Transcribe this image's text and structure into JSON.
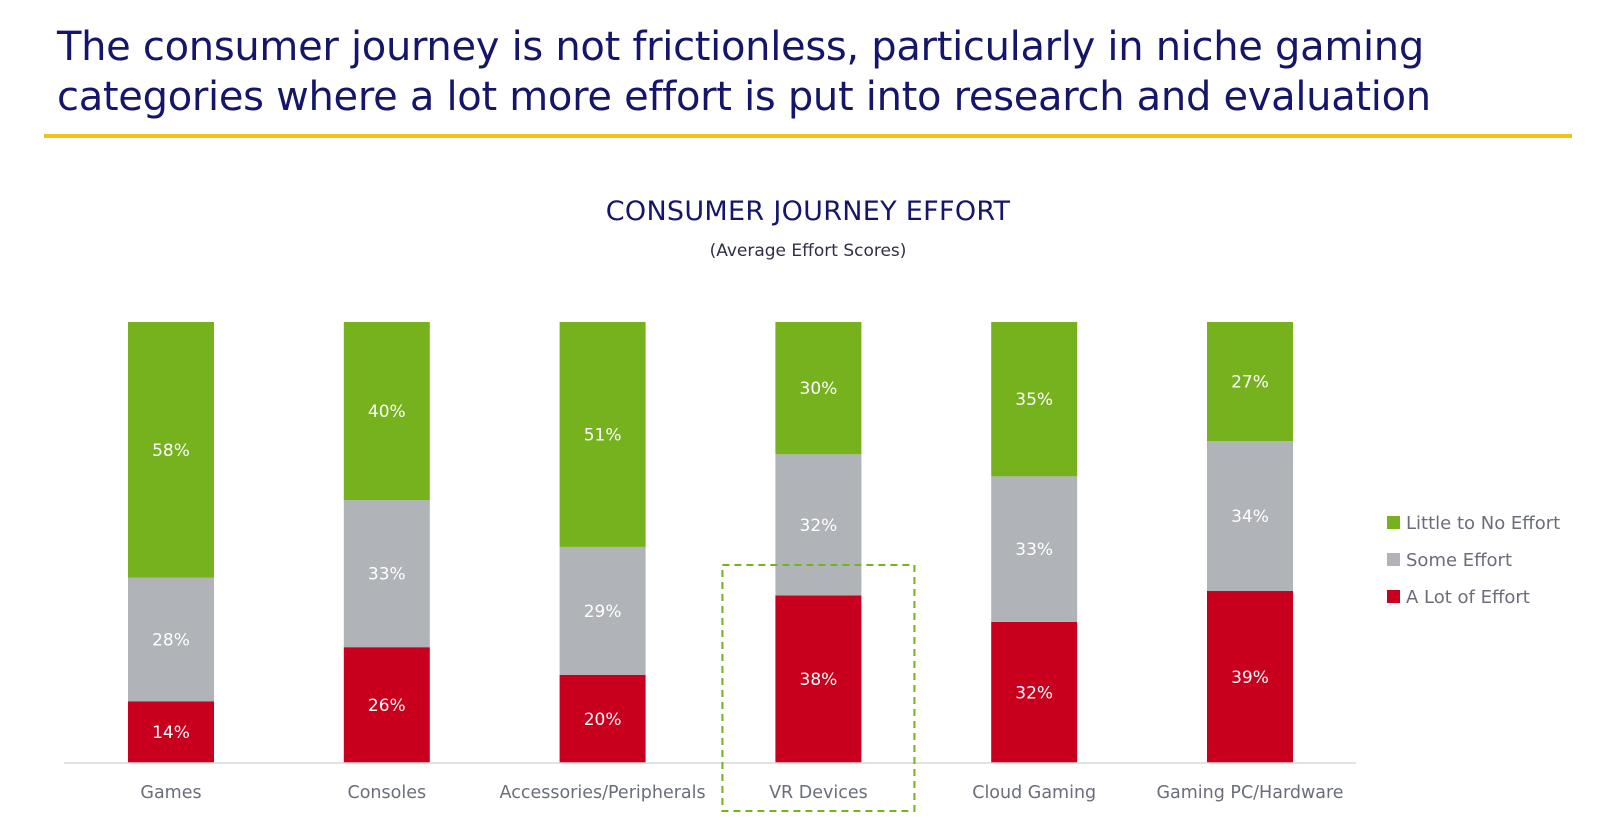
{
  "headline": {
    "line1": "The consumer journey is not frictionless, particularly in niche gaming",
    "line2": "categories where a lot more effort is put into research and evaluation"
  },
  "colors": {
    "headline": "#14156b",
    "rule": "#f2c21a",
    "little": "#76b21e",
    "some": "#b0b3b8",
    "alot": "#c8001e",
    "highlight": "#76b21e",
    "axis_text": "#6b6e7a",
    "chart_title": "#14156b"
  },
  "chart_data": {
    "type": "bar",
    "stacked": true,
    "title": "CONSUMER JOURNEY EFFORT",
    "subtitle": "(Average Effort Scores)",
    "categories": [
      "Games",
      "Consoles",
      "Accessories/Peripherals",
      "VR Devices",
      "Cloud Gaming",
      "Gaming PC/Hardware"
    ],
    "series": [
      {
        "name": "A Lot of Effort",
        "color": "#c8001e",
        "values": [
          14,
          26,
          20,
          38,
          32,
          39
        ]
      },
      {
        "name": "Some Effort",
        "color": "#b0b3b8",
        "values": [
          28,
          33,
          29,
          32,
          33,
          34
        ]
      },
      {
        "name": "Little to No Effort",
        "color": "#76b21e",
        "values": [
          58,
          40,
          51,
          30,
          35,
          27
        ]
      }
    ],
    "legend_order": [
      "Little to No Effort",
      "Some Effort",
      "A Lot of Effort"
    ],
    "legend_position": "right",
    "highlighted_category": "VR Devices",
    "value_suffix": "%",
    "grid": false
  }
}
